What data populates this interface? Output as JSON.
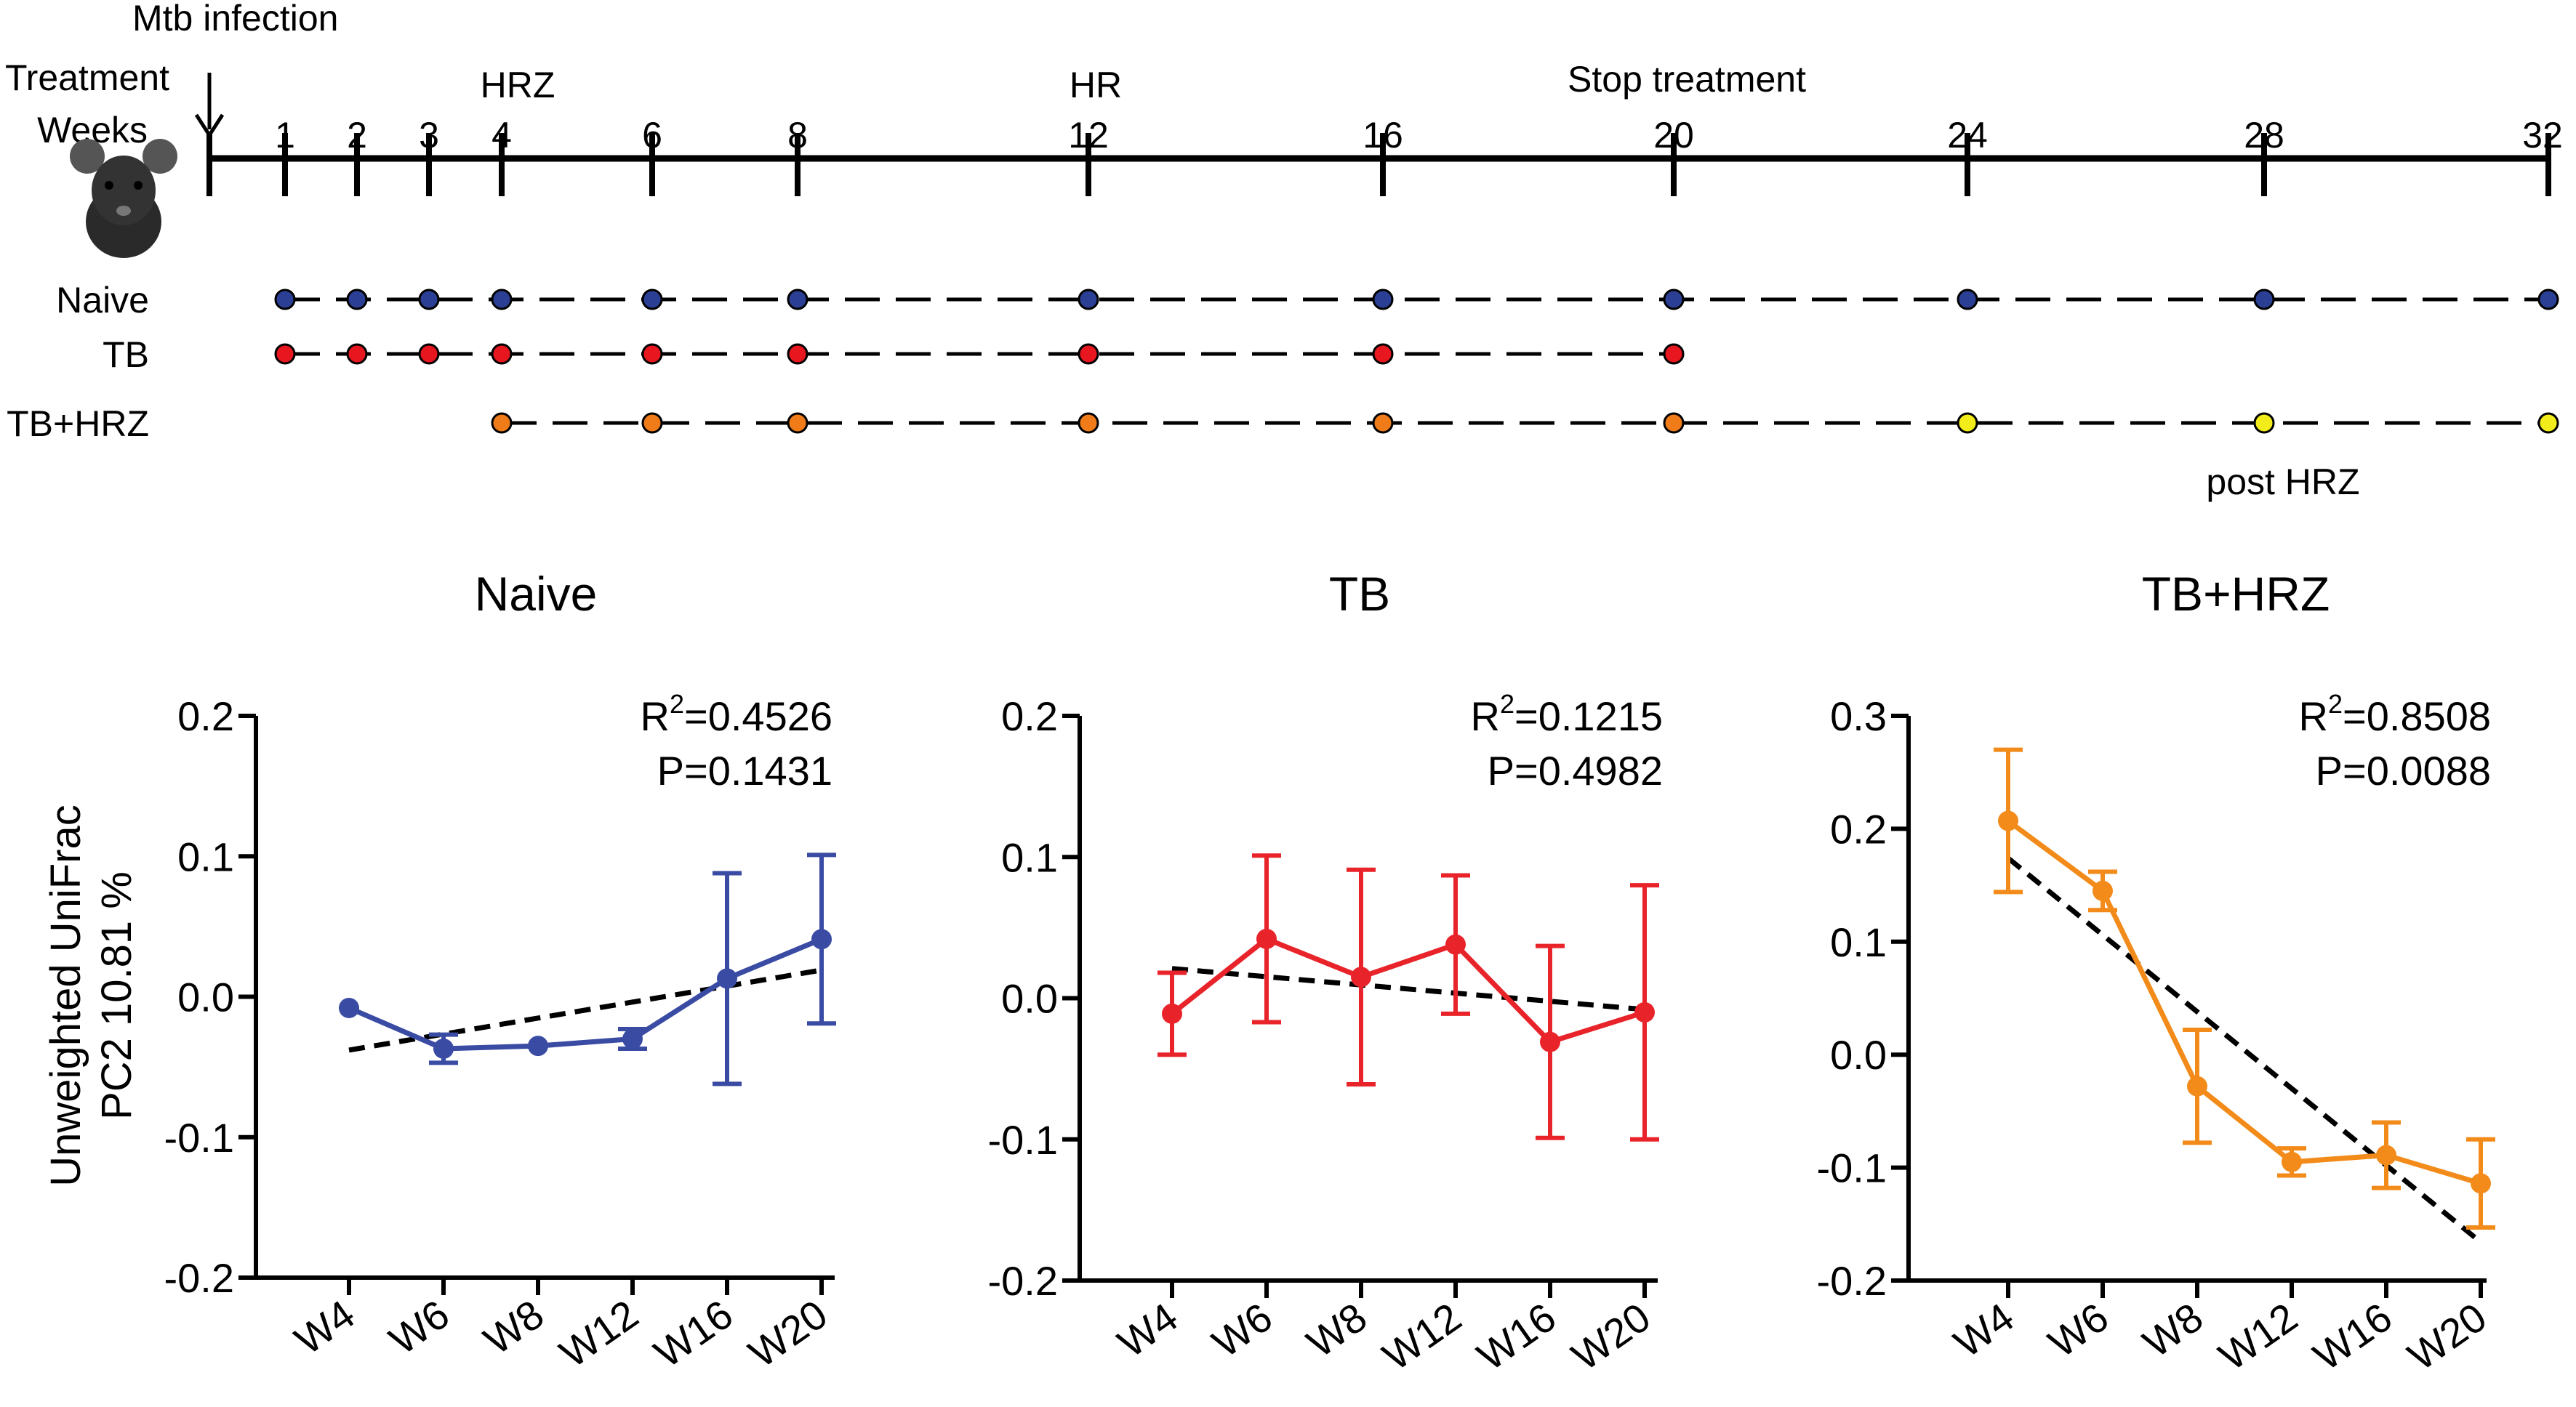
{
  "timeline": {
    "mtb_label": "Mtb infection",
    "treatment_label": "Treatment",
    "weeks_label": "Weeks",
    "ticks": [
      "1",
      "2",
      "3",
      "4",
      "6",
      "8",
      "12",
      "16",
      "20",
      "24",
      "28",
      "32"
    ],
    "phase_hrz": "HRZ",
    "phase_hr": "HR",
    "phase_stop": "Stop treatment",
    "post_hrz": "post HRZ",
    "groups": [
      {
        "name": "Naive",
        "weeks": [
          1,
          2,
          3,
          4,
          6,
          8,
          12,
          16,
          20,
          24,
          28,
          32
        ],
        "colors": [
          "#2b3f94",
          "#2b3f94",
          "#2b3f94",
          "#2b3f94",
          "#2b3f94",
          "#2b3f94",
          "#2b3f94",
          "#2b3f94",
          "#2b3f94",
          "#2b3f94",
          "#2b3f94",
          "#2b3f94"
        ]
      },
      {
        "name": "TB",
        "weeks": [
          1,
          2,
          3,
          4,
          6,
          8,
          12,
          16,
          20
        ],
        "colors": [
          "#e8161f",
          "#e8161f",
          "#e8161f",
          "#e8161f",
          "#e8161f",
          "#e8161f",
          "#e8161f",
          "#e8161f",
          "#e8161f"
        ]
      },
      {
        "name": "TB+HRZ",
        "weeks": [
          4,
          6,
          8,
          12,
          16,
          20,
          24,
          28,
          32
        ],
        "colors": [
          "#f07c19",
          "#f07c19",
          "#f07c19",
          "#f07c19",
          "#f07c19",
          "#f07c19",
          "#f2ec1a",
          "#f2ec1a",
          "#f2ec1a"
        ]
      }
    ]
  },
  "chart_data": [
    {
      "type": "line",
      "title": "Naive",
      "ylabel_line1": "Unweighted UniFrac",
      "ylabel_line2": "PC2 10.81 %",
      "categories": [
        "W4",
        "W6",
        "W8",
        "W12",
        "W16",
        "W20"
      ],
      "values": [
        -0.008,
        -0.037,
        -0.035,
        -0.03,
        0.013,
        0.041
      ],
      "errors": [
        0,
        0.01,
        0,
        0.007,
        0.075,
        0.06
      ],
      "ylim": [
        -0.2,
        0.2
      ],
      "yticks": [
        "0.2",
        "0.1",
        "0.0",
        "-0.1",
        "-0.2"
      ],
      "ytick_values": [
        0.2,
        0.1,
        0.0,
        -0.1,
        -0.2
      ],
      "trend": [
        -0.038,
        0.019
      ],
      "color": "#3a4ba3",
      "r2_label": "R",
      "r2_sup": "2",
      "r2_value": "=0.4526",
      "p_text": "P=0.1431"
    },
    {
      "type": "line",
      "title": "TB",
      "categories": [
        "W4",
        "W6",
        "W8",
        "W12",
        "W16",
        "W20"
      ],
      "values": [
        -0.011,
        0.042,
        0.015,
        0.038,
        -0.031,
        -0.01
      ],
      "errors": [
        0.029,
        0.059,
        0.076,
        0.049,
        0.068,
        0.09
      ],
      "ylim": [
        -0.2,
        0.2
      ],
      "yticks": [
        "0.2",
        "0.1",
        "0.0",
        "-0.1",
        "-0.2"
      ],
      "ytick_values": [
        0.2,
        0.1,
        0.0,
        -0.1,
        -0.2
      ],
      "trend": [
        0.021,
        -0.008
      ],
      "color": "#e8242a",
      "r2_label": "R",
      "r2_sup": "2",
      "r2_value": "=0.1215",
      "p_text": "P=0.4982"
    },
    {
      "type": "line",
      "title": "TB+HRZ",
      "categories": [
        "W4",
        "W6",
        "W8",
        "W12",
        "W16",
        "W20"
      ],
      "values": [
        0.207,
        0.145,
        -0.028,
        -0.095,
        -0.089,
        -0.114
      ],
      "errors": [
        0.063,
        0.017,
        0.05,
        0.012,
        0.029,
        0.039
      ],
      "ylim": [
        -0.2,
        0.3
      ],
      "yticks": [
        "0.3",
        "0.2",
        "0.1",
        "0.0",
        "-0.1",
        "-0.2"
      ],
      "ytick_values": [
        0.3,
        0.2,
        0.1,
        0.0,
        -0.1,
        -0.2
      ],
      "trend": [
        0.174,
        -0.166
      ],
      "color": "#f28b1a",
      "r2_label": "R",
      "r2_sup": "2",
      "r2_value": "=0.8508",
      "p_text": "P=0.0088"
    }
  ]
}
